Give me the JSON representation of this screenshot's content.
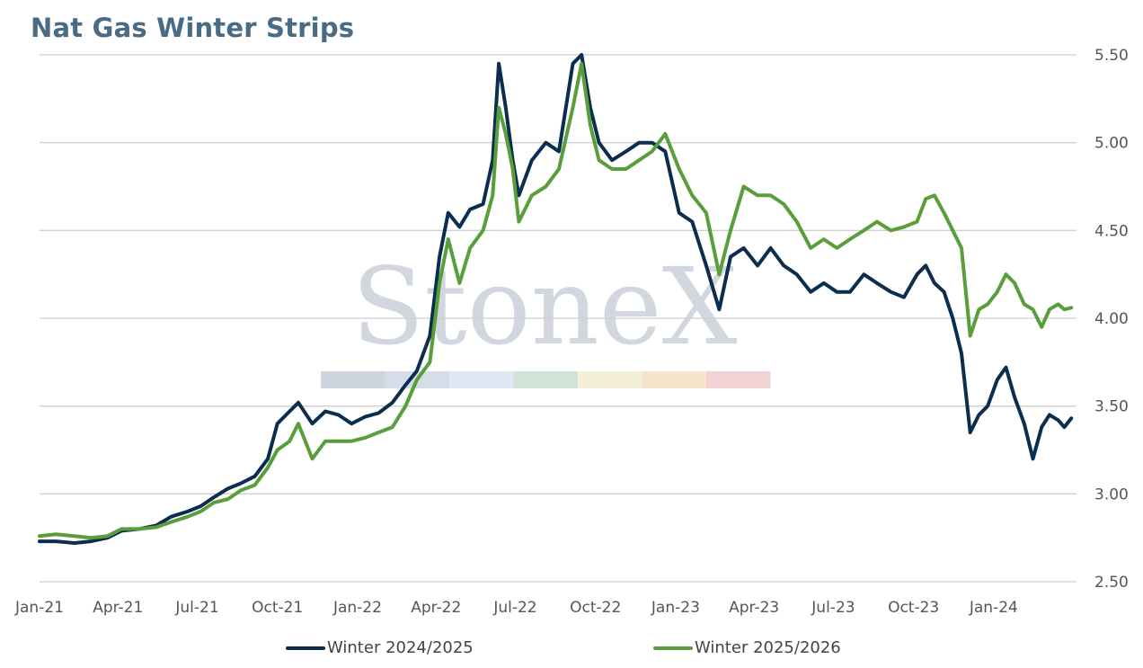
{
  "chart_data": {
    "type": "line",
    "title": "Nat Gas Winter Strips",
    "xlabel": "",
    "ylabel": "",
    "x_ticks": [
      "Jan-21",
      "Apr-21",
      "Jul-21",
      "Oct-21",
      "Jan-22",
      "Apr-22",
      "Jul-22",
      "Oct-22",
      "Jan-23",
      "Apr-23",
      "Jul-23",
      "Oct-23",
      "Jan-24"
    ],
    "y_ticks": [
      "2.50",
      "3.00",
      "3.50",
      "4.00",
      "4.50",
      "5.00",
      "5.50"
    ],
    "ylim": [
      2.5,
      5.5
    ],
    "xlim": [
      "2021-01-01",
      "2024-04-05"
    ],
    "grid": "horizontal",
    "legend_position": "bottom",
    "series": [
      {
        "name": "Winter 2024/2025",
        "color": "#0b2d4e",
        "points": [
          [
            "2021-01-01",
            2.73
          ],
          [
            "2021-01-20",
            2.73
          ],
          [
            "2021-02-10",
            2.72
          ],
          [
            "2021-03-01",
            2.73
          ],
          [
            "2021-03-20",
            2.75
          ],
          [
            "2021-04-05",
            2.79
          ],
          [
            "2021-04-25",
            2.8
          ],
          [
            "2021-05-15",
            2.82
          ],
          [
            "2021-06-01",
            2.87
          ],
          [
            "2021-06-20",
            2.9
          ],
          [
            "2021-07-05",
            2.93
          ],
          [
            "2021-07-20",
            2.98
          ],
          [
            "2021-08-05",
            3.03
          ],
          [
            "2021-08-20",
            3.06
          ],
          [
            "2021-09-05",
            3.1
          ],
          [
            "2021-09-20",
            3.2
          ],
          [
            "2021-10-01",
            3.4
          ],
          [
            "2021-10-15",
            3.47
          ],
          [
            "2021-10-25",
            3.52
          ],
          [
            "2021-11-10",
            3.4
          ],
          [
            "2021-11-25",
            3.47
          ],
          [
            "2021-12-10",
            3.45
          ],
          [
            "2021-12-25",
            3.4
          ],
          [
            "2022-01-10",
            3.44
          ],
          [
            "2022-01-25",
            3.46
          ],
          [
            "2022-02-10",
            3.52
          ],
          [
            "2022-02-25",
            3.62
          ],
          [
            "2022-03-10",
            3.7
          ],
          [
            "2022-03-25",
            3.9
          ],
          [
            "2022-04-05",
            4.35
          ],
          [
            "2022-04-15",
            4.6
          ],
          [
            "2022-04-28",
            4.52
          ],
          [
            "2022-05-10",
            4.62
          ],
          [
            "2022-05-25",
            4.65
          ],
          [
            "2022-06-05",
            4.9
          ],
          [
            "2022-06-12",
            5.45
          ],
          [
            "2022-06-20",
            5.2
          ],
          [
            "2022-06-28",
            4.9
          ],
          [
            "2022-07-05",
            4.7
          ],
          [
            "2022-07-20",
            4.9
          ],
          [
            "2022-08-05",
            5.0
          ],
          [
            "2022-08-20",
            4.95
          ],
          [
            "2022-09-05",
            5.45
          ],
          [
            "2022-09-15",
            5.5
          ],
          [
            "2022-09-25",
            5.2
          ],
          [
            "2022-10-05",
            5.0
          ],
          [
            "2022-10-20",
            4.9
          ],
          [
            "2022-11-05",
            4.95
          ],
          [
            "2022-11-20",
            5.0
          ],
          [
            "2022-12-05",
            5.0
          ],
          [
            "2022-12-20",
            4.95
          ],
          [
            "2023-01-05",
            4.6
          ],
          [
            "2023-01-20",
            4.55
          ],
          [
            "2023-02-05",
            4.3
          ],
          [
            "2023-02-20",
            4.05
          ],
          [
            "2023-03-05",
            4.35
          ],
          [
            "2023-03-20",
            4.4
          ],
          [
            "2023-04-05",
            4.3
          ],
          [
            "2023-04-20",
            4.4
          ],
          [
            "2023-05-05",
            4.3
          ],
          [
            "2023-05-20",
            4.25
          ],
          [
            "2023-06-05",
            4.15
          ],
          [
            "2023-06-20",
            4.2
          ],
          [
            "2023-07-05",
            4.15
          ],
          [
            "2023-07-20",
            4.15
          ],
          [
            "2023-08-05",
            4.25
          ],
          [
            "2023-08-20",
            4.2
          ],
          [
            "2023-09-05",
            4.15
          ],
          [
            "2023-09-20",
            4.12
          ],
          [
            "2023-10-05",
            4.25
          ],
          [
            "2023-10-15",
            4.3
          ],
          [
            "2023-10-25",
            4.2
          ],
          [
            "2023-11-05",
            4.15
          ],
          [
            "2023-11-15",
            4.0
          ],
          [
            "2023-11-25",
            3.8
          ],
          [
            "2023-12-05",
            3.35
          ],
          [
            "2023-12-15",
            3.45
          ],
          [
            "2023-12-25",
            3.5
          ],
          [
            "2024-01-05",
            3.65
          ],
          [
            "2024-01-15",
            3.72
          ],
          [
            "2024-01-25",
            3.55
          ],
          [
            "2024-02-05",
            3.4
          ],
          [
            "2024-02-15",
            3.2
          ],
          [
            "2024-02-25",
            3.38
          ],
          [
            "2024-03-05",
            3.45
          ],
          [
            "2024-03-15",
            3.42
          ],
          [
            "2024-03-22",
            3.38
          ],
          [
            "2024-03-30",
            3.43
          ]
        ]
      },
      {
        "name": "Winter 2025/2026",
        "color": "#5a9e3c",
        "points": [
          [
            "2021-01-01",
            2.76
          ],
          [
            "2021-01-20",
            2.77
          ],
          [
            "2021-02-10",
            2.76
          ],
          [
            "2021-03-01",
            2.75
          ],
          [
            "2021-03-20",
            2.76
          ],
          [
            "2021-04-05",
            2.8
          ],
          [
            "2021-04-25",
            2.8
          ],
          [
            "2021-05-15",
            2.81
          ],
          [
            "2021-06-01",
            2.84
          ],
          [
            "2021-06-20",
            2.87
          ],
          [
            "2021-07-05",
            2.9
          ],
          [
            "2021-07-20",
            2.95
          ],
          [
            "2021-08-05",
            2.97
          ],
          [
            "2021-08-20",
            3.02
          ],
          [
            "2021-09-05",
            3.05
          ],
          [
            "2021-09-20",
            3.15
          ],
          [
            "2021-10-01",
            3.25
          ],
          [
            "2021-10-15",
            3.3
          ],
          [
            "2021-10-25",
            3.4
          ],
          [
            "2021-11-10",
            3.2
          ],
          [
            "2021-11-25",
            3.3
          ],
          [
            "2021-12-10",
            3.3
          ],
          [
            "2021-12-25",
            3.3
          ],
          [
            "2022-01-10",
            3.32
          ],
          [
            "2022-01-25",
            3.35
          ],
          [
            "2022-02-10",
            3.38
          ],
          [
            "2022-02-25",
            3.5
          ],
          [
            "2022-03-10",
            3.65
          ],
          [
            "2022-03-25",
            3.75
          ],
          [
            "2022-04-05",
            4.2
          ],
          [
            "2022-04-15",
            4.45
          ],
          [
            "2022-04-28",
            4.2
          ],
          [
            "2022-05-10",
            4.4
          ],
          [
            "2022-05-25",
            4.5
          ],
          [
            "2022-06-05",
            4.7
          ],
          [
            "2022-06-12",
            5.2
          ],
          [
            "2022-06-20",
            5.05
          ],
          [
            "2022-06-28",
            4.85
          ],
          [
            "2022-07-05",
            4.55
          ],
          [
            "2022-07-20",
            4.7
          ],
          [
            "2022-08-05",
            4.75
          ],
          [
            "2022-08-20",
            4.85
          ],
          [
            "2022-09-05",
            5.2
          ],
          [
            "2022-09-15",
            5.45
          ],
          [
            "2022-09-25",
            5.1
          ],
          [
            "2022-10-05",
            4.9
          ],
          [
            "2022-10-20",
            4.85
          ],
          [
            "2022-11-05",
            4.85
          ],
          [
            "2022-11-20",
            4.9
          ],
          [
            "2022-12-05",
            4.95
          ],
          [
            "2022-12-20",
            5.05
          ],
          [
            "2023-01-05",
            4.85
          ],
          [
            "2023-01-20",
            4.7
          ],
          [
            "2023-02-05",
            4.6
          ],
          [
            "2023-02-20",
            4.25
          ],
          [
            "2023-03-05",
            4.5
          ],
          [
            "2023-03-20",
            4.75
          ],
          [
            "2023-04-05",
            4.7
          ],
          [
            "2023-04-20",
            4.7
          ],
          [
            "2023-05-05",
            4.65
          ],
          [
            "2023-05-20",
            4.55
          ],
          [
            "2023-06-05",
            4.4
          ],
          [
            "2023-06-20",
            4.45
          ],
          [
            "2023-07-05",
            4.4
          ],
          [
            "2023-07-20",
            4.45
          ],
          [
            "2023-08-05",
            4.5
          ],
          [
            "2023-08-20",
            4.55
          ],
          [
            "2023-09-05",
            4.5
          ],
          [
            "2023-09-20",
            4.52
          ],
          [
            "2023-10-05",
            4.55
          ],
          [
            "2023-10-15",
            4.68
          ],
          [
            "2023-10-25",
            4.7
          ],
          [
            "2023-11-05",
            4.6
          ],
          [
            "2023-11-15",
            4.5
          ],
          [
            "2023-11-25",
            4.4
          ],
          [
            "2023-12-05",
            3.9
          ],
          [
            "2023-12-15",
            4.05
          ],
          [
            "2023-12-25",
            4.08
          ],
          [
            "2024-01-05",
            4.15
          ],
          [
            "2024-01-15",
            4.25
          ],
          [
            "2024-01-25",
            4.2
          ],
          [
            "2024-02-05",
            4.08
          ],
          [
            "2024-02-15",
            4.05
          ],
          [
            "2024-02-25",
            3.95
          ],
          [
            "2024-03-05",
            4.05
          ],
          [
            "2024-03-15",
            4.08
          ],
          [
            "2024-03-22",
            4.05
          ],
          [
            "2024-03-30",
            4.06
          ]
        ]
      }
    ]
  },
  "watermark": {
    "text": "StoneX",
    "bar_colors": [
      "#cdd5df",
      "#d4dde8",
      "#dde8f2",
      "#d1e2d6",
      "#f4f0d7",
      "#f6e4cb",
      "#f1d3d3"
    ]
  }
}
